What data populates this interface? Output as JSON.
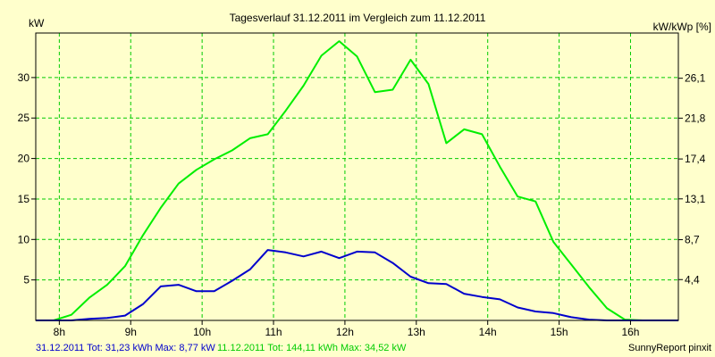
{
  "chart_data": {
    "type": "line",
    "title": "Tagesverlauf 31.12.2011 im Vergleich zum 11.12.2011",
    "ylabel_left": "kW",
    "ylabel_right": "kW/kWp [%]",
    "x_tick_labels": [
      "8h",
      "9h",
      "10h",
      "11h",
      "12h",
      "13h",
      "14h",
      "15h",
      "16h"
    ],
    "x_range_hours": [
      7.67,
      16.67
    ],
    "ylim": [
      0,
      35.5
    ],
    "y_ticks_left": [
      5,
      10,
      15,
      20,
      25,
      30
    ],
    "y_ticks_right": [
      {
        "value": 4.4,
        "label": "4,4"
      },
      {
        "value": 8.7,
        "label": "8,7"
      },
      {
        "value": 13.1,
        "label": "13,1"
      },
      {
        "value": 17.4,
        "label": "17,4"
      },
      {
        "value": 21.8,
        "label": "21,8"
      },
      {
        "value": 26.1,
        "label": "26,1"
      }
    ],
    "right_axis_per_kw": 0.8725,
    "grid": true,
    "background": "#ffffcc",
    "plot_background": "#ffffcc",
    "grid_color": "#00cc00",
    "series": [
      {
        "name": "11.12.2011",
        "color": "#00ee00",
        "x": [
          7.67,
          7.92,
          8.17,
          8.42,
          8.67,
          8.92,
          9.17,
          9.42,
          9.67,
          9.92,
          10.17,
          10.42,
          10.67,
          10.92,
          11.17,
          11.42,
          11.67,
          11.92,
          12.17,
          12.42,
          12.67,
          12.92,
          13.17,
          13.42,
          13.67,
          13.92,
          14.17,
          14.42,
          14.67,
          14.92,
          15.17,
          15.42,
          15.67,
          15.92,
          16.17,
          16.42,
          16.67
        ],
        "values": [
          0,
          0,
          0.7,
          2.8,
          4.4,
          6.7,
          10.5,
          13.9,
          16.9,
          18.6,
          19.9,
          21.0,
          22.5,
          23.0,
          25.9,
          29.0,
          32.7,
          34.5,
          32.6,
          28.2,
          28.5,
          32.2,
          29.2,
          21.9,
          23.6,
          23.0,
          19.0,
          15.3,
          14.7,
          9.7,
          6.9,
          4.1,
          1.5,
          0.1,
          0,
          0,
          0
        ]
      },
      {
        "name": "31.12.2011",
        "color": "#0000cc",
        "x": [
          7.67,
          7.92,
          8.17,
          8.42,
          8.67,
          8.92,
          9.17,
          9.42,
          9.67,
          9.92,
          10.17,
          10.42,
          10.67,
          10.92,
          11.17,
          11.42,
          11.67,
          11.92,
          12.17,
          12.42,
          12.67,
          12.92,
          13.17,
          13.42,
          13.67,
          13.92,
          14.17,
          14.42,
          14.67,
          14.92,
          15.17,
          15.42,
          15.67,
          15.92,
          16.17,
          16.42,
          16.67
        ],
        "values": [
          0,
          0,
          0,
          0.2,
          0.3,
          0.6,
          2.0,
          4.2,
          4.4,
          3.6,
          3.6,
          4.9,
          6.3,
          8.7,
          8.4,
          7.9,
          8.5,
          7.7,
          8.5,
          8.4,
          7.1,
          5.4,
          4.6,
          4.5,
          3.3,
          2.9,
          2.6,
          1.6,
          1.1,
          0.9,
          0.4,
          0.1,
          0,
          0,
          0,
          0,
          0
        ]
      }
    ],
    "footer": {
      "left_blue": "31.12.2011 Tot: 31,23 kWh Max: 8,77 kW",
      "left_green": "11.12.2011 Tot: 144,11 kWh Max: 34,52 kW",
      "right": "SunnyReport pinxit"
    }
  }
}
